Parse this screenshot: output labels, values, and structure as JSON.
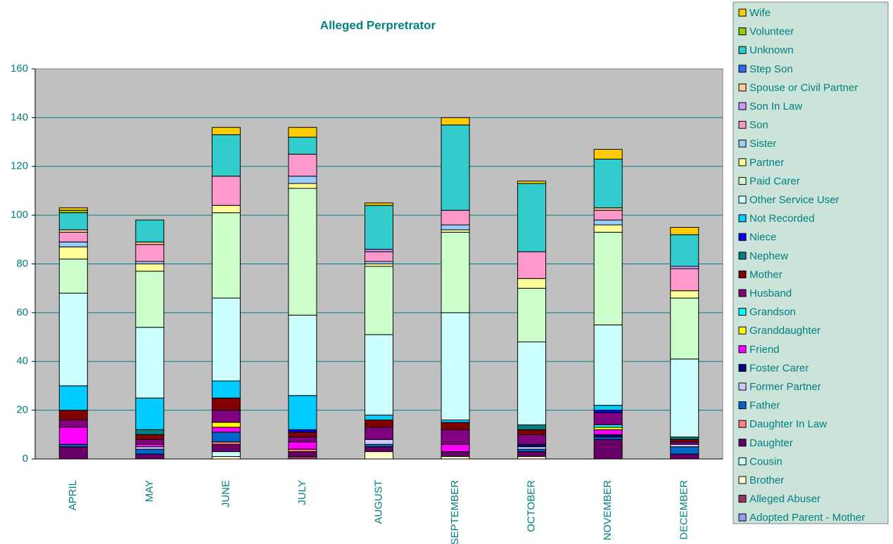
{
  "chart_data": {
    "type": "stacked_bar",
    "title": "Alleged Perpretrator",
    "categories": [
      "APRIL",
      "MAY",
      "JUNE",
      "JULY",
      "AUGUST",
      "SEPTEMBER",
      "OCTOBER",
      "NOVEMBER",
      "DECEMBER"
    ],
    "ylim": [
      0,
      160
    ],
    "yticks": [
      0,
      20,
      40,
      60,
      80,
      100,
      120,
      140,
      160
    ],
    "grid": true,
    "legend": "right",
    "series": [
      {
        "name": "Adopted Parent - Mother",
        "color": "#9999ff",
        "values": [
          0,
          0,
          0,
          0,
          0,
          0,
          0,
          0,
          0
        ]
      },
      {
        "name": "Alleged Abuser",
        "color": "#993366",
        "values": [
          0,
          0,
          0,
          1,
          0,
          0,
          0,
          0,
          0
        ]
      },
      {
        "name": "Brother",
        "color": "#ffffcc",
        "values": [
          0,
          0,
          1,
          0,
          3,
          1,
          1,
          0,
          0
        ]
      },
      {
        "name": "Cousin",
        "color": "#ccffff",
        "values": [
          0,
          0,
          2,
          0,
          0,
          0,
          0,
          0,
          0
        ]
      },
      {
        "name": "Daughter",
        "color": "#660066",
        "values": [
          5,
          2,
          3,
          2,
          2,
          2,
          2,
          8,
          2
        ]
      },
      {
        "name": "Daughter In Law",
        "color": "#ff8080",
        "values": [
          0,
          0,
          1,
          1,
          0,
          0,
          0,
          0,
          0
        ]
      },
      {
        "name": "Father",
        "color": "#0066cc",
        "values": [
          1,
          2,
          4,
          0,
          1,
          0,
          1,
          1,
          3
        ]
      },
      {
        "name": "Former Partner",
        "color": "#ccccff",
        "values": [
          0,
          1,
          0,
          0,
          2,
          0,
          1,
          0,
          1
        ]
      },
      {
        "name": "Foster Carer",
        "color": "#000080",
        "values": [
          0,
          0,
          0,
          0,
          0,
          0,
          1,
          1,
          0
        ]
      },
      {
        "name": "Friend",
        "color": "#ff00ff",
        "values": [
          7,
          1,
          2,
          3,
          0,
          3,
          0,
          2,
          0
        ]
      },
      {
        "name": "Granddaughter",
        "color": "#ffff00",
        "values": [
          0,
          0,
          2,
          0,
          0,
          0,
          0,
          1,
          0
        ]
      },
      {
        "name": "Grandson",
        "color": "#00ffff",
        "values": [
          0,
          0,
          0,
          0,
          0,
          0,
          0,
          1,
          0
        ]
      },
      {
        "name": "Husband",
        "color": "#800080",
        "values": [
          3,
          2,
          5,
          2,
          5,
          6,
          4,
          5,
          1
        ]
      },
      {
        "name": "Mother",
        "color": "#800000",
        "values": [
          4,
          2,
          5,
          2,
          3,
          3,
          2,
          0,
          1
        ]
      },
      {
        "name": "Nephew",
        "color": "#008080",
        "values": [
          0,
          2,
          0,
          0,
          0,
          0,
          2,
          0,
          1
        ]
      },
      {
        "name": "Niece",
        "color": "#0000ff",
        "values": [
          0,
          0,
          0,
          1,
          0,
          0,
          0,
          1,
          0
        ]
      },
      {
        "name": "Not Recorded",
        "color": "#00ccff",
        "values": [
          10,
          13,
          7,
          14,
          2,
          1,
          0,
          2,
          0
        ]
      },
      {
        "name": "Other Service User",
        "color": "#ccffff",
        "values": [
          38,
          29,
          34,
          33,
          33,
          44,
          34,
          33,
          32
        ]
      },
      {
        "name": "Paid Carer",
        "color": "#ccffcc",
        "values": [
          14,
          23,
          35,
          52,
          28,
          33,
          22,
          38,
          25
        ]
      },
      {
        "name": "Partner",
        "color": "#ffff99",
        "values": [
          5,
          3,
          3,
          2,
          1,
          1,
          4,
          3,
          3
        ]
      },
      {
        "name": "Sister",
        "color": "#99ccff",
        "values": [
          2,
          1,
          0,
          3,
          1,
          2,
          0,
          2,
          0
        ]
      },
      {
        "name": "Son",
        "color": "#ff99cc",
        "values": [
          4,
          7,
          12,
          9,
          4,
          6,
          11,
          4,
          9
        ]
      },
      {
        "name": "Son In Law",
        "color": "#cc99ff",
        "values": [
          0,
          0,
          0,
          0,
          1,
          0,
          0,
          0,
          1
        ]
      },
      {
        "name": "Spouse or Civil Partner",
        "color": "#ffcc99",
        "values": [
          1,
          1,
          0,
          0,
          0,
          0,
          0,
          1,
          0
        ]
      },
      {
        "name": "Step Son",
        "color": "#3366ff",
        "values": [
          0,
          0,
          0,
          0,
          0,
          0,
          0,
          0,
          0
        ]
      },
      {
        "name": "Unknown",
        "color": "#33cccc",
        "values": [
          7,
          9,
          17,
          7,
          18,
          35,
          28,
          20,
          13
        ]
      },
      {
        "name": "Volunteer",
        "color": "#99cc00",
        "values": [
          1,
          0,
          0,
          0,
          0,
          0,
          0,
          0,
          0
        ]
      },
      {
        "name": "Wife",
        "color": "#ffcc00",
        "values": [
          1,
          0,
          3,
          4,
          1,
          3,
          1,
          4,
          3
        ]
      }
    ]
  }
}
